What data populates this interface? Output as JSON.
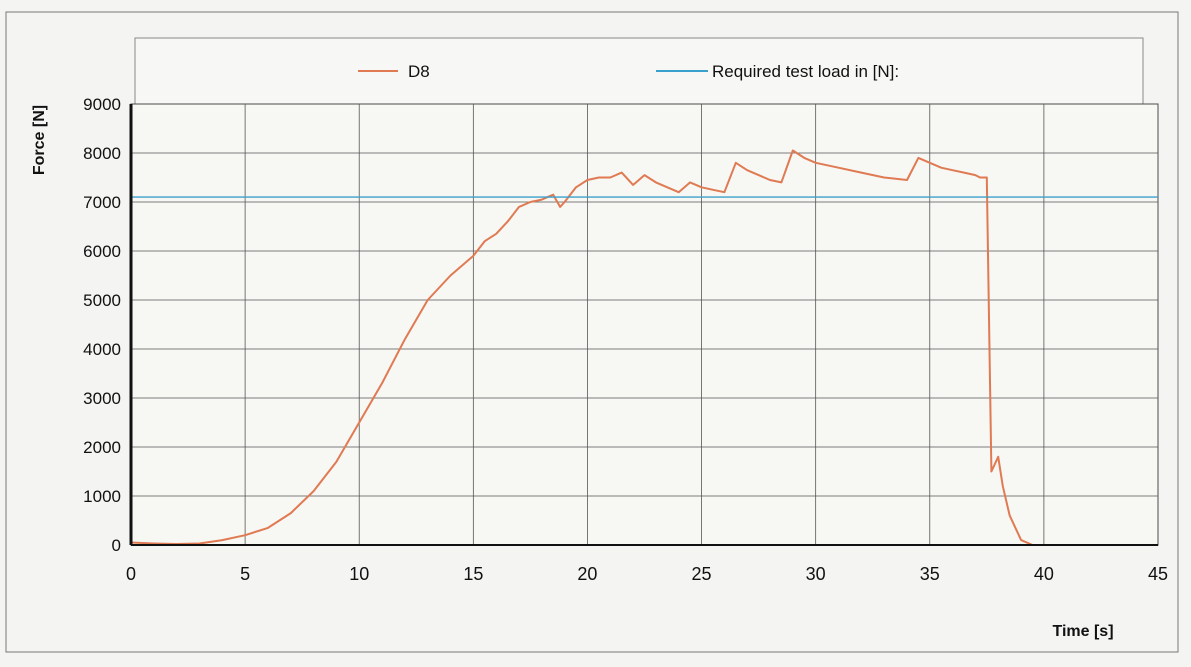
{
  "chart_data": {
    "type": "line",
    "xlabel": "Time [s]",
    "ylabel": "Force [N]",
    "xlim": [
      0,
      45
    ],
    "ylim": [
      0,
      9000
    ],
    "xticks": [
      0,
      5,
      10,
      15,
      20,
      25,
      30,
      35,
      40,
      45
    ],
    "yticks": [
      0,
      1000,
      2000,
      3000,
      4000,
      5000,
      6000,
      7000,
      8000,
      9000
    ],
    "grid": true,
    "legend_position": "top",
    "series": [
      {
        "name": "D8",
        "color": "#e07a52",
        "x": [
          0,
          1,
          2,
          3,
          4,
          5,
          6,
          7,
          8,
          9,
          10,
          11,
          12,
          13,
          14,
          15,
          15.5,
          16,
          16.5,
          17,
          17.5,
          18,
          18.5,
          18.8,
          19,
          19.5,
          20,
          20.5,
          21,
          21.5,
          22,
          22.5,
          23,
          23.5,
          24,
          24.5,
          25,
          25.5,
          26,
          26.5,
          27,
          27.5,
          28,
          28.5,
          29,
          29.5,
          30,
          31,
          32,
          33,
          34,
          34.5,
          35,
          35.5,
          36,
          36.5,
          37,
          37.2,
          37.5,
          37.7,
          38,
          38.2,
          38.5,
          39,
          39.5,
          40,
          41,
          42,
          43,
          44,
          45
        ],
        "y": [
          50,
          30,
          20,
          30,
          100,
          200,
          350,
          650,
          1100,
          1700,
          2500,
          3300,
          4200,
          5000,
          5500,
          5900,
          6200,
          6350,
          6600,
          6900,
          7000,
          7050,
          7150,
          6900,
          7000,
          7300,
          7450,
          7500,
          7500,
          7600,
          7350,
          7550,
          7400,
          7300,
          7200,
          7400,
          7300,
          7250,
          7200,
          7800,
          7650,
          7550,
          7450,
          7400,
          8050,
          7900,
          7800,
          7700,
          7600,
          7500,
          7450,
          7900,
          7800,
          7700,
          7650,
          7600,
          7550,
          7500,
          7500,
          1500,
          1800,
          1200,
          600,
          100,
          0,
          0,
          0,
          0,
          0,
          0,
          0
        ]
      },
      {
        "name": "Required test load in [N]:",
        "color": "#3aa0cc",
        "x": [
          0,
          45
        ],
        "y": [
          7100,
          7100
        ]
      }
    ]
  }
}
